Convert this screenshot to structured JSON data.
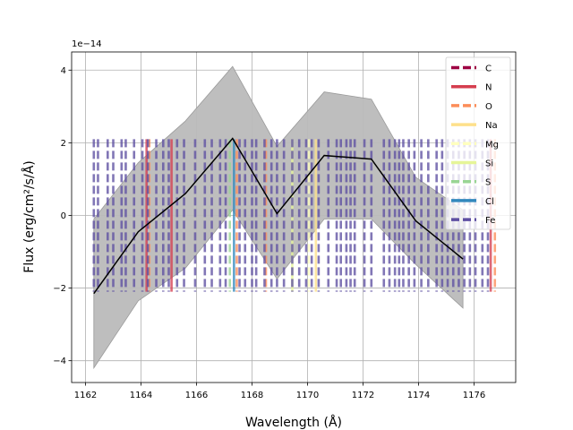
{
  "chart_data": {
    "type": "line",
    "xlabel": "Wavelength (Å)",
    "ylabel": "Flux (erg/cm²/s/Å)",
    "offset_label": "1e−14",
    "xlim": [
      1161.5,
      1177.5
    ],
    "ylim": [
      -4.6,
      4.5
    ],
    "x_ticks": [
      1162,
      1164,
      1166,
      1168,
      1170,
      1172,
      1174,
      1176
    ],
    "y_ticks": [
      -4,
      -2,
      0,
      2,
      4
    ],
    "x_tick_labels": [
      "1162",
      "1164",
      "1166",
      "1168",
      "1170",
      "1172",
      "1174",
      "1176"
    ],
    "y_tick_labels": [
      "−4",
      "−2",
      "0",
      "2",
      "4"
    ],
    "grid": true,
    "legend_position": "top-right",
    "flux": {
      "x": [
        1162.3,
        1163.9,
        1165.6,
        1167.3,
        1168.9,
        1170.6,
        1172.3,
        1173.9,
        1175.6
      ],
      "y": [
        -2.15,
        -0.45,
        0.6,
        2.12,
        0.05,
        1.65,
        1.55,
        -0.15,
        -1.2
      ],
      "color": "#000000"
    },
    "flux_band": {
      "x": [
        1162.3,
        1163.9,
        1165.6,
        1167.3,
        1168.9,
        1170.6,
        1172.3,
        1173.9,
        1175.6
      ],
      "upper": [
        -0.1,
        1.45,
        2.6,
        4.1,
        1.9,
        3.4,
        3.2,
        1.05,
        0.15
      ],
      "lower": [
        -4.2,
        -2.35,
        -1.45,
        0.15,
        -1.75,
        -0.1,
        -0.1,
        -1.35,
        -2.55
      ],
      "color": "#bbbbbb"
    },
    "line_markers": {
      "ymin": -2.1,
      "ymax": 2.1,
      "series": [
        {
          "name": "C",
          "color": "#9e0142",
          "dash": "dashed",
          "x": []
        },
        {
          "name": "N",
          "color": "#d53e4f",
          "dash": "solid",
          "x": [
            1164.2,
            1165.1,
            1176.6
          ]
        },
        {
          "name": "O",
          "color": "#fc8d59",
          "dash": "dashed",
          "x": [
            1164.3,
            1167.45,
            1168.5,
            1176.75
          ]
        },
        {
          "name": "Na",
          "color": "#fee08b",
          "dash": "solid",
          "x": [
            1170.3
          ]
        },
        {
          "name": "Mg",
          "color": "#ffffbf",
          "dash": "dashed",
          "x": [
            1170.05
          ]
        },
        {
          "name": "Si",
          "color": "#e6f598",
          "dash": "solid",
          "x": [
            1169.45
          ]
        },
        {
          "name": "S",
          "color": "#99d594",
          "dash": "dashed",
          "x": [
            1167.2
          ]
        },
        {
          "name": "Cl",
          "color": "#3288bd",
          "dash": "solid",
          "x": [
            1167.35
          ]
        },
        {
          "name": "Fe",
          "color": "#5e4fa2",
          "dash": "dashed",
          "x": [
            1162.3,
            1162.45,
            1162.8,
            1163.0,
            1163.3,
            1163.45,
            1163.75,
            1164.05,
            1164.25,
            1164.55,
            1164.8,
            1165.0,
            1165.3,
            1165.55,
            1165.95,
            1166.3,
            1166.55,
            1166.85,
            1167.05,
            1167.55,
            1167.75,
            1168.0,
            1168.15,
            1168.45,
            1168.7,
            1168.9,
            1169.15,
            1169.45,
            1169.7,
            1169.95,
            1170.15,
            1170.4,
            1170.75,
            1171.05,
            1171.2,
            1171.4,
            1171.55,
            1171.7,
            1172.05,
            1172.3,
            1172.75,
            1172.95,
            1173.15,
            1173.3,
            1173.45,
            1173.65,
            1173.85,
            1174.1,
            1174.35,
            1174.65,
            1174.85,
            1175.05,
            1175.25,
            1175.45,
            1175.65,
            1175.85,
            1176.05,
            1176.3,
            1176.5
          ]
        }
      ]
    }
  }
}
